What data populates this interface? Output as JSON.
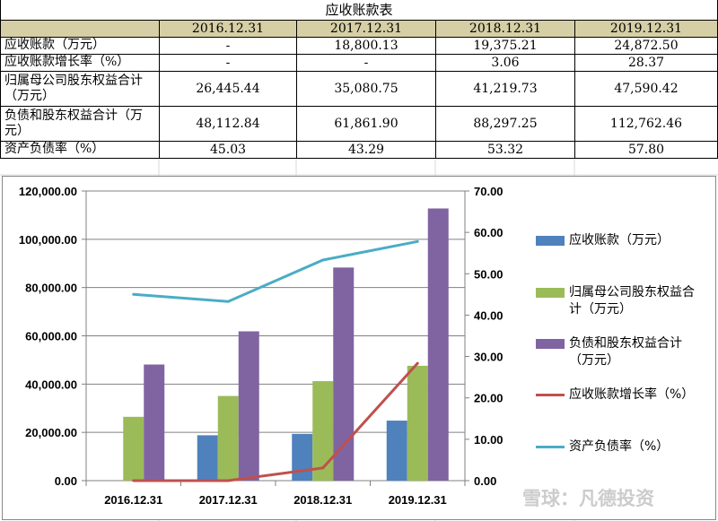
{
  "table": {
    "title": "应收账款表",
    "headers": [
      "",
      "2016.12.31",
      "2017.12.31",
      "2018.12.31",
      "2019.12.31"
    ],
    "rows": [
      {
        "label": "应收账款（万元）",
        "values": [
          "-",
          "18,800.13",
          "19,375.21",
          "24,872.50"
        ]
      },
      {
        "label": "应收账款增长率（%）",
        "values": [
          "-",
          "-",
          "3.06",
          "28.37"
        ]
      },
      {
        "label": "归属母公司股东权益合计（万元）",
        "values": [
          "26,445.44",
          "35,080.75",
          "41,219.73",
          "47,590.42"
        ]
      },
      {
        "label": "负债和股东权益合计（万元）",
        "values": [
          "48,112.84",
          "61,861.90",
          "88,297.25",
          "112,762.46"
        ]
      },
      {
        "label": "资产负债率（%）",
        "values": [
          "45.03",
          "43.29",
          "53.32",
          "57.80"
        ]
      }
    ]
  },
  "chart_data": {
    "type": "bar",
    "categories": [
      "2016.12.31",
      "2017.12.31",
      "2018.12.31",
      "2019.12.31"
    ],
    "y_left": {
      "range": [
        0,
        120000
      ],
      "ticks": [
        "0.00",
        "20,000.00",
        "40,000.00",
        "60,000.00",
        "80,000.00",
        "100,000.00",
        "120,000.00"
      ]
    },
    "y_right": {
      "range": [
        0,
        70
      ],
      "ticks": [
        "0.00",
        "10.00",
        "20.00",
        "30.00",
        "40.00",
        "50.00",
        "60.00",
        "70.00"
      ]
    },
    "grid": true,
    "legend_position": "right",
    "series": [
      {
        "name": "应收账款（万元）",
        "type": "bar",
        "axis": "left",
        "color": "#4f81bd",
        "values": [
          null,
          18800.13,
          19375.21,
          24872.5
        ]
      },
      {
        "name": "归属母公司股东权益合计（万元）",
        "type": "bar",
        "axis": "left",
        "color": "#9bbb59",
        "values": [
          26445.44,
          35080.75,
          41219.73,
          47590.42
        ]
      },
      {
        "name": "负债和股东权益合计（万元）",
        "type": "bar",
        "axis": "left",
        "color": "#8064a2",
        "values": [
          48112.84,
          61861.9,
          88297.25,
          112762.46
        ]
      },
      {
        "name": "应收账款增长率（%）",
        "type": "line",
        "axis": "right",
        "color": "#c0504d",
        "values": [
          0,
          0,
          3.06,
          28.37
        ]
      },
      {
        "name": "资产负债率（%）",
        "type": "line",
        "axis": "right",
        "color": "#4bacc6",
        "values": [
          45.03,
          43.29,
          53.32,
          57.8
        ]
      }
    ]
  },
  "watermark": "雪球：凡德投资"
}
